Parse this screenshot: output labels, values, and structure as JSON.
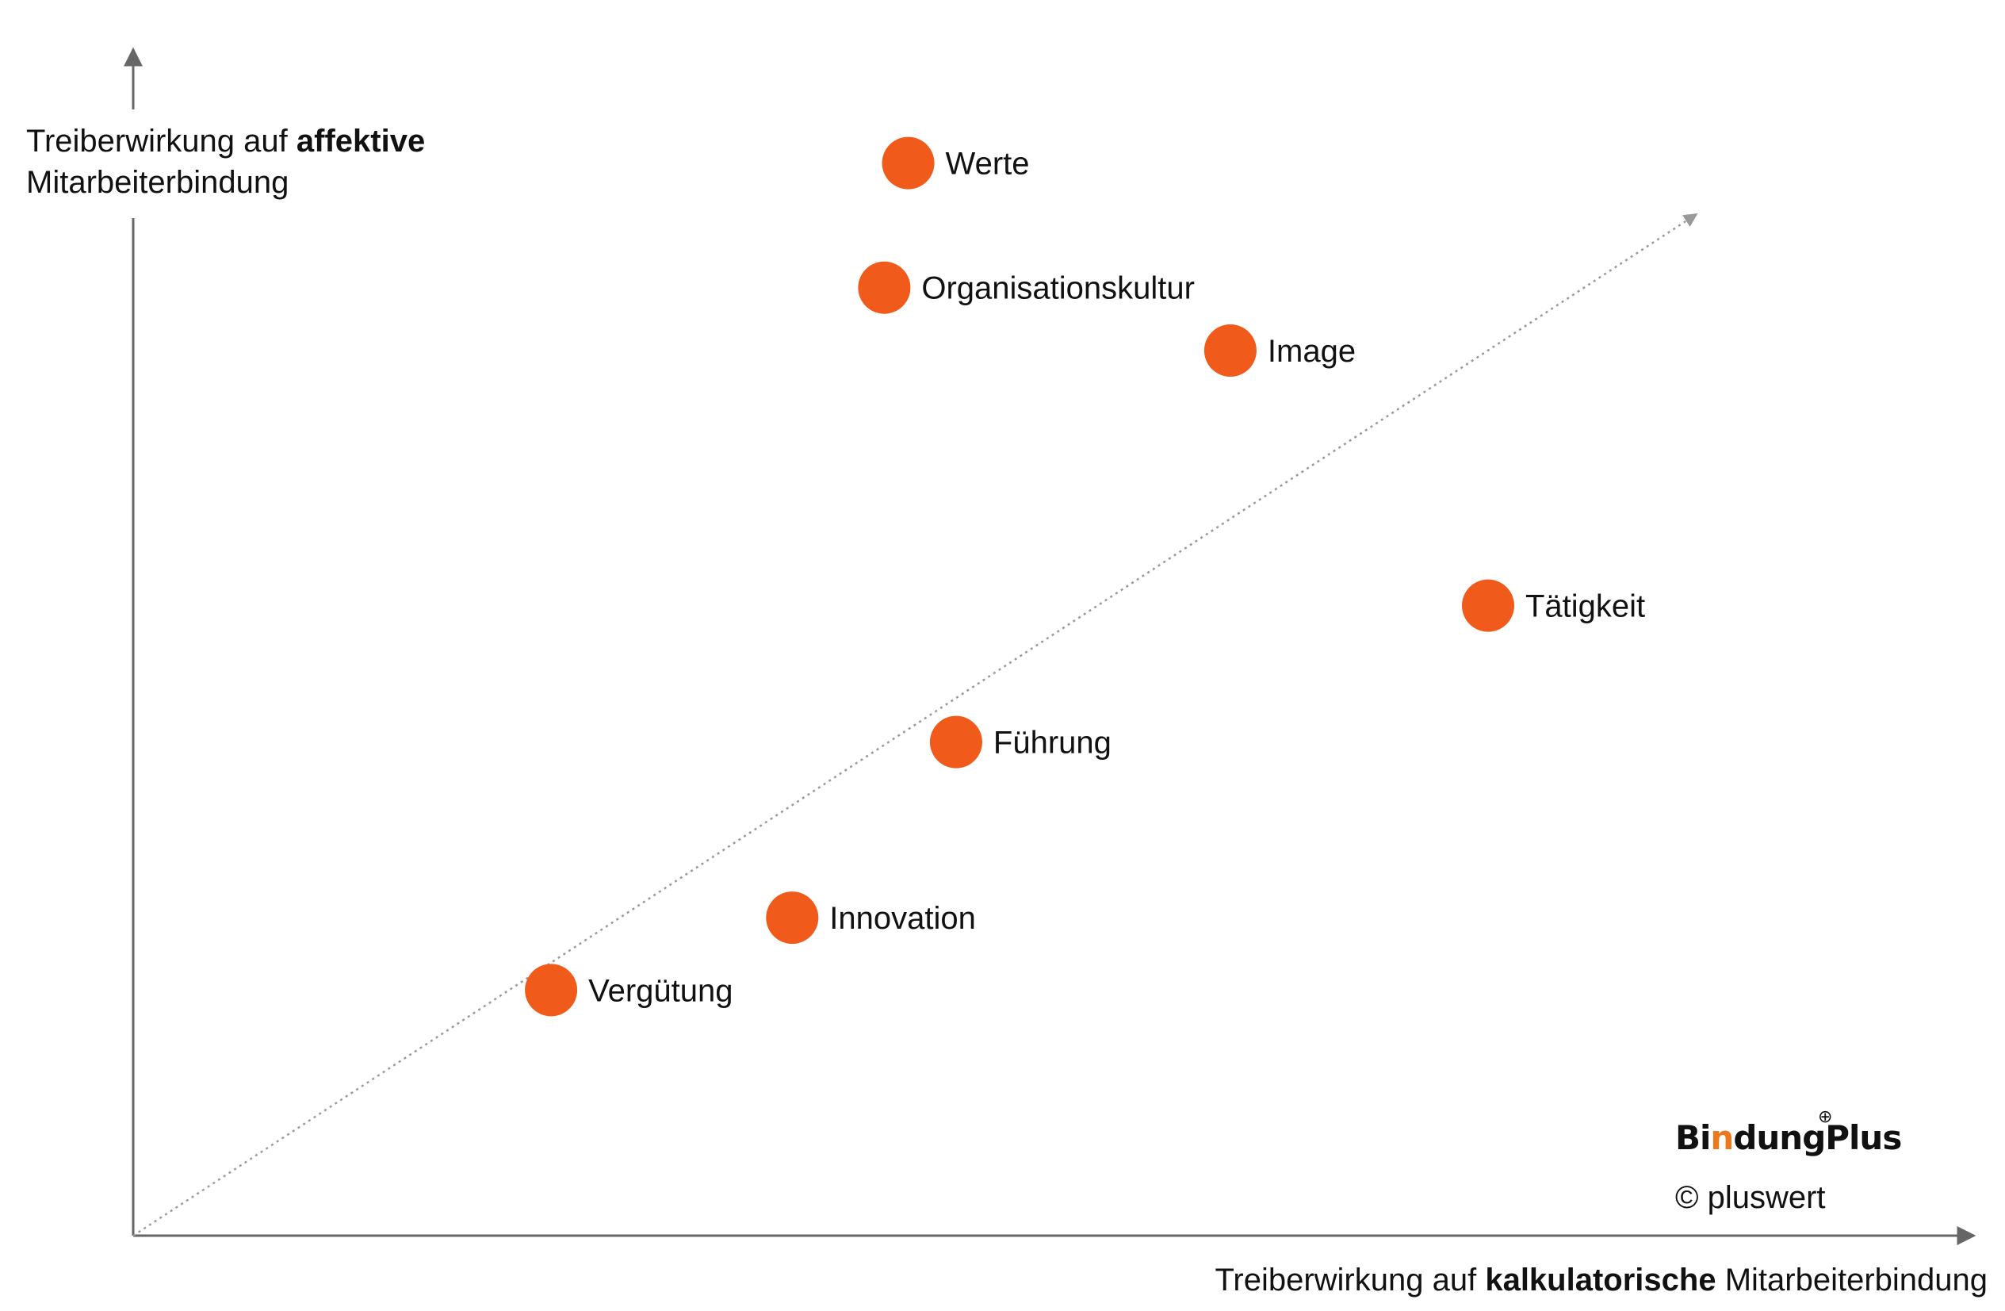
{
  "chart_data": {
    "type": "scatter",
    "xlabel": {
      "prefix": "Treiberwirkung auf ",
      "bold": "kalkulatorische",
      "suffix": " Mitarbeiterbindung"
    },
    "ylabel": {
      "line1_prefix": "Treiberwirkung auf ",
      "line1_bold": "affektive",
      "line2": "Mitarbeiterbindung"
    },
    "xlim": [
      0,
      100
    ],
    "ylim": [
      0,
      100
    ],
    "grid": false,
    "axis_ticks": false,
    "diagonal_reference_line": true,
    "point_color": "#f05a1a",
    "points": [
      {
        "label": "Werte",
        "x": 42.1,
        "y": 90.4
      },
      {
        "label": "Organisationskultur",
        "x": 40.8,
        "y": 79.9
      },
      {
        "label": "Image",
        "x": 59.6,
        "y": 74.6
      },
      {
        "label": "Tätigkeit",
        "x": 73.6,
        "y": 53.1
      },
      {
        "label": "Führung",
        "x": 44.7,
        "y": 41.6
      },
      {
        "label": "Innovation",
        "x": 35.8,
        "y": 26.8
      },
      {
        "label": "Vergütung",
        "x": 22.7,
        "y": 20.7
      }
    ]
  },
  "branding": {
    "logo_part1": "Bi",
    "logo_accent": "n",
    "logo_part2": "dungPlus",
    "logo_plus_symbol": "⊕",
    "copyright": "© pluswert"
  },
  "colors": {
    "axis": "#666666",
    "reference_line": "#999999",
    "logo_accent": "#ec7a1c"
  }
}
